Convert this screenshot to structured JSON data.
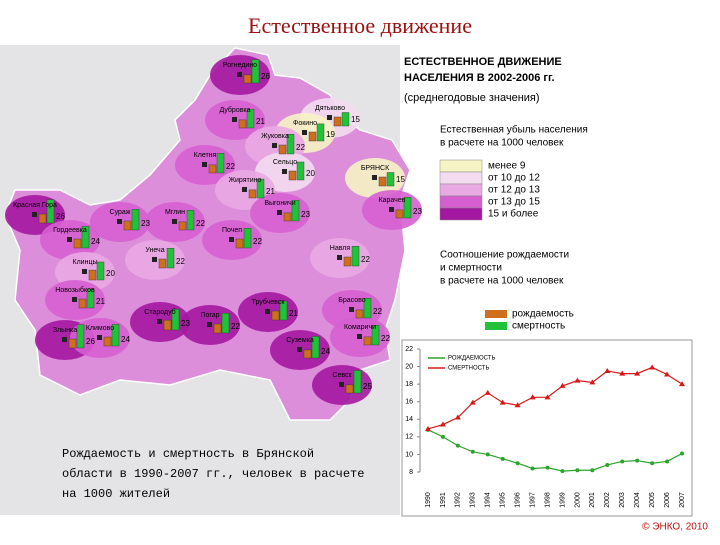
{
  "title": "Естественное движение",
  "legend": {
    "heading": [
      "ЕСТЕСТВЕННОЕ ДВИЖЕНИЕ",
      "НАСЕЛЕНИЯ В 2002-2006 гг."
    ],
    "subheading": "(среднегодовые значения)",
    "classes_title": [
      "Естественная убыль населения",
      "в расчете на 1000 человек"
    ],
    "classes": [
      {
        "label": "менее 9",
        "color": "#f6f3c4"
      },
      {
        "label": "от 10 до 12",
        "color": "#f3dcef"
      },
      {
        "label": "от 12 до 13",
        "color": "#e9a9e2"
      },
      {
        "label": "от 13 до 15",
        "color": "#d65fd0"
      },
      {
        "label": "15 и более",
        "color": "#a417a0"
      }
    ],
    "ratio_title": [
      "Соотношение рождаемости",
      "и смертности",
      "в расчете на 1000 человек"
    ],
    "ratio_items": [
      {
        "label": "рождаемость",
        "color": "#cf6e1b"
      },
      {
        "label": "смертность",
        "color": "#22c13a"
      }
    ]
  },
  "map": {
    "districts": [
      {
        "name": "Рогнедино",
        "class": 4,
        "birth": 9,
        "death": 26
      },
      {
        "name": "Дубровка",
        "class": 3,
        "birth": 9,
        "death": 21
      },
      {
        "name": "Дятьково",
        "class": 1,
        "birth": 10,
        "death": 15
      },
      {
        "name": "Фокино",
        "class": 0,
        "birth": 10,
        "death": 19
      },
      {
        "name": "Жуковка",
        "class": 2,
        "birth": 10,
        "death": 22
      },
      {
        "name": "Сельцо",
        "class": 1,
        "birth": 10,
        "death": 20
      },
      {
        "name": "БРЯНСК",
        "class": 0,
        "birth": 10,
        "death": 15
      },
      {
        "name": "Клетня",
        "class": 3,
        "birth": 9,
        "death": 22
      },
      {
        "name": "Жирятино",
        "class": 2,
        "birth": 9,
        "death": 21
      },
      {
        "name": "Карачев",
        "class": 3,
        "birth": 9,
        "death": 23
      },
      {
        "name": "Мглин",
        "class": 3,
        "birth": 9,
        "death": 22
      },
      {
        "name": "Сураж",
        "class": 3,
        "birth": 10,
        "death": 23
      },
      {
        "name": "Красная Гора",
        "class": 4,
        "birth": 10,
        "death": 26
      },
      {
        "name": "Гордеевка",
        "class": 3,
        "birth": 10,
        "death": 24
      },
      {
        "name": "Выгоничи",
        "class": 3,
        "birth": 9,
        "death": 23
      },
      {
        "name": "Почеп",
        "class": 3,
        "birth": 10,
        "death": 22
      },
      {
        "name": "Унеча",
        "class": 2,
        "birth": 10,
        "death": 22
      },
      {
        "name": "Навля",
        "class": 2,
        "birth": 10,
        "death": 22
      },
      {
        "name": "Клинцы",
        "class": 2,
        "birth": 11,
        "death": 20
      },
      {
        "name": "Новозыбков",
        "class": 3,
        "birth": 10,
        "death": 21
      },
      {
        "name": "Стародуб",
        "class": 4,
        "birth": 11,
        "death": 23
      },
      {
        "name": "Погар",
        "class": 4,
        "birth": 10,
        "death": 22
      },
      {
        "name": "Трубчевск",
        "class": 4,
        "birth": 10,
        "death": 21
      },
      {
        "name": "Брасово",
        "class": 3,
        "birth": 9,
        "death": 22
      },
      {
        "name": "Злынка",
        "class": 4,
        "birth": 10,
        "death": 26
      },
      {
        "name": "Климово",
        "class": 3,
        "birth": 10,
        "death": 24
      },
      {
        "name": "Комаричи",
        "class": 3,
        "birth": 9,
        "death": 22
      },
      {
        "name": "Суземка",
        "class": 4,
        "birth": 9,
        "death": 24
      },
      {
        "name": "Севск",
        "class": 4,
        "birth": 9,
        "death": 25
      }
    ]
  },
  "caption": [
    "Рождаемость и смертность в Брянской",
    "области в 1990-2007 гг., человек в расчете",
    "на 1000 жителей"
  ],
  "chart_data": {
    "type": "line",
    "x": [
      "1990",
      "1991",
      "1992",
      "1993",
      "1994",
      "1995",
      "1996",
      "1997",
      "1998",
      "1999",
      "2000",
      "2001",
      "2002",
      "2003",
      "2004",
      "2005",
      "2006",
      "2007"
    ],
    "series": [
      {
        "name": "РОЖДАЕМОСТЬ",
        "color": "#2aa52a",
        "marker": "circle",
        "values": [
          12.8,
          12,
          11,
          10.3,
          10,
          9.5,
          9,
          8.4,
          8.5,
          8.1,
          8.2,
          8.2,
          8.8,
          9.2,
          9.3,
          9,
          9.2,
          10.1
        ]
      },
      {
        "name": "СМЕРТНОСТЬ",
        "color": "#d81818",
        "marker": "triangle",
        "values": [
          12.9,
          13.4,
          14.2,
          15.9,
          17,
          15.9,
          15.6,
          16.5,
          16.5,
          17.8,
          18.4,
          18.2,
          19.5,
          19.2,
          19.2,
          19.9,
          19.1,
          18
        ]
      }
    ],
    "ylim": [
      8,
      22
    ],
    "yticks": [
      8,
      10,
      12,
      14,
      16,
      18,
      20,
      22
    ],
    "grid": false
  },
  "copyright": "© ЭНКО, 2010"
}
